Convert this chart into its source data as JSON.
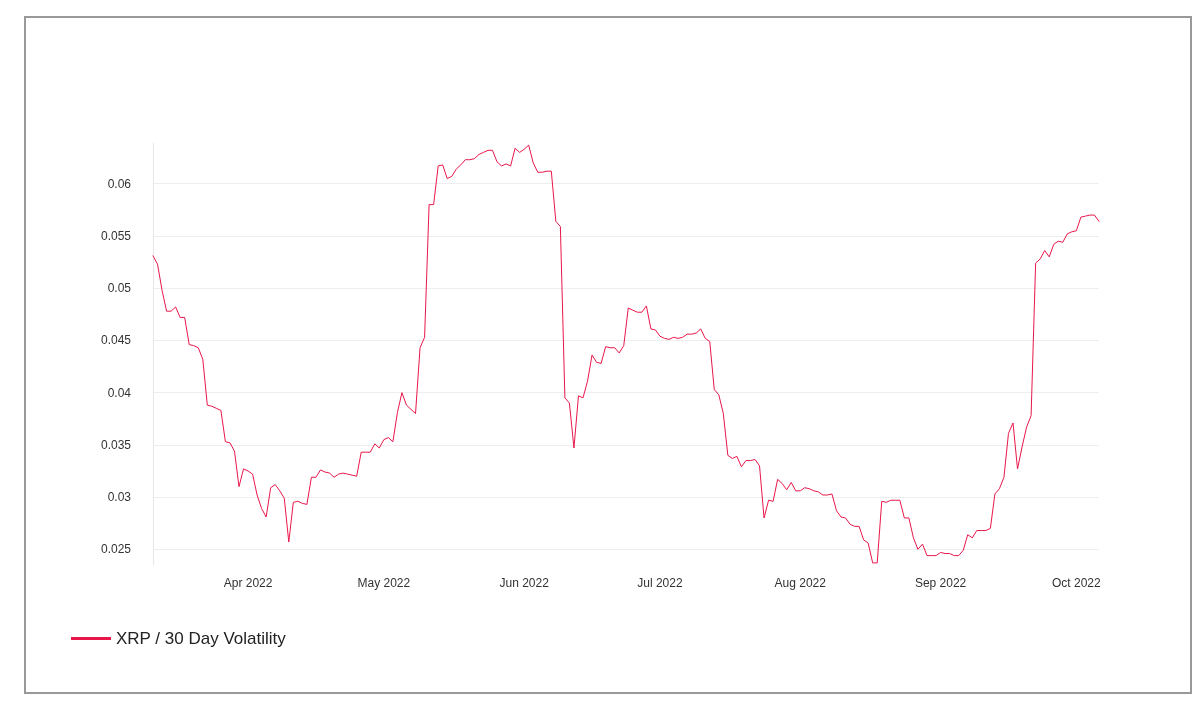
{
  "chart_data": {
    "type": "line",
    "marker": "none",
    "line_style": "solid",
    "grid": "y",
    "legend": "bottom left",
    "xlim": [
      "2022-03-11",
      "2022-10-06"
    ],
    "xticks": [
      {
        "value": "2022-04-01",
        "label": "Apr 2022"
      },
      {
        "value": "2022-05-01",
        "label": "May 2022"
      },
      {
        "value": "2022-06-01",
        "label": "Jun 2022"
      },
      {
        "value": "2022-07-01",
        "label": "Jul 2022"
      },
      {
        "value": "2022-08-01",
        "label": "Aug 2022"
      },
      {
        "value": "2022-09-01",
        "label": "Sep 2022"
      },
      {
        "value": "2022-10-01",
        "label": "Oct 2022"
      }
    ],
    "ylim": [
      0.0235,
      0.0639
    ],
    "yticks": [
      0.025,
      0.03,
      0.035,
      0.04,
      0.045,
      0.05,
      0.055,
      0.06
    ],
    "x": [
      "2022-03-11",
      "2022-03-12",
      "2022-03-13",
      "2022-03-14",
      "2022-03-15",
      "2022-03-16",
      "2022-03-17",
      "2022-03-18",
      "2022-03-19",
      "2022-03-20",
      "2022-03-21",
      "2022-03-22",
      "2022-03-23",
      "2022-03-24",
      "2022-03-25",
      "2022-03-26",
      "2022-03-27",
      "2022-03-28",
      "2022-03-29",
      "2022-03-30",
      "2022-03-31",
      "2022-04-01",
      "2022-04-02",
      "2022-04-03",
      "2022-04-04",
      "2022-04-05",
      "2022-04-06",
      "2022-04-07",
      "2022-04-08",
      "2022-04-09",
      "2022-04-10",
      "2022-04-11",
      "2022-04-12",
      "2022-04-13",
      "2022-04-14",
      "2022-04-15",
      "2022-04-16",
      "2022-04-17",
      "2022-04-18",
      "2022-04-19",
      "2022-04-20",
      "2022-04-21",
      "2022-04-22",
      "2022-04-23",
      "2022-04-24",
      "2022-04-25",
      "2022-04-26",
      "2022-04-27",
      "2022-04-28",
      "2022-04-29",
      "2022-04-30",
      "2022-05-01",
      "2022-05-02",
      "2022-05-03",
      "2022-05-04",
      "2022-05-05",
      "2022-05-06",
      "2022-05-07",
      "2022-05-08",
      "2022-05-09",
      "2022-05-10",
      "2022-05-11",
      "2022-05-12",
      "2022-05-13",
      "2022-05-14",
      "2022-05-15",
      "2022-05-16",
      "2022-05-17",
      "2022-05-18",
      "2022-05-19",
      "2022-05-20",
      "2022-05-21",
      "2022-05-22",
      "2022-05-23",
      "2022-05-24",
      "2022-05-25",
      "2022-05-26",
      "2022-05-27",
      "2022-05-28",
      "2022-05-29",
      "2022-05-30",
      "2022-05-31",
      "2022-06-01",
      "2022-06-02",
      "2022-06-03",
      "2022-06-04",
      "2022-06-05",
      "2022-06-06",
      "2022-06-07",
      "2022-06-08",
      "2022-06-09",
      "2022-06-10",
      "2022-06-11",
      "2022-06-12",
      "2022-06-13",
      "2022-06-14",
      "2022-06-15",
      "2022-06-16",
      "2022-06-17",
      "2022-06-18",
      "2022-06-19",
      "2022-06-20",
      "2022-06-21",
      "2022-06-22",
      "2022-06-23",
      "2022-06-24",
      "2022-06-25",
      "2022-06-26",
      "2022-06-27",
      "2022-06-28",
      "2022-06-29",
      "2022-06-30",
      "2022-07-01",
      "2022-07-02",
      "2022-07-03",
      "2022-07-04",
      "2022-07-05",
      "2022-07-06",
      "2022-07-07",
      "2022-07-08",
      "2022-07-09",
      "2022-07-10",
      "2022-07-11",
      "2022-07-12",
      "2022-07-13",
      "2022-07-14",
      "2022-07-15",
      "2022-07-16",
      "2022-07-17",
      "2022-07-18",
      "2022-07-19",
      "2022-07-20",
      "2022-07-21",
      "2022-07-22",
      "2022-07-23",
      "2022-07-24",
      "2022-07-25",
      "2022-07-26",
      "2022-07-27",
      "2022-07-28",
      "2022-07-29",
      "2022-07-30",
      "2022-07-31",
      "2022-08-01",
      "2022-08-02",
      "2022-08-03",
      "2022-08-04",
      "2022-08-05",
      "2022-08-06",
      "2022-08-07",
      "2022-08-08",
      "2022-08-09",
      "2022-08-10",
      "2022-08-11",
      "2022-08-12",
      "2022-08-13",
      "2022-08-14",
      "2022-08-15",
      "2022-08-16",
      "2022-08-17",
      "2022-08-18",
      "2022-08-19",
      "2022-08-20",
      "2022-08-21",
      "2022-08-22",
      "2022-08-23",
      "2022-08-24",
      "2022-08-25",
      "2022-08-26",
      "2022-08-27",
      "2022-08-28",
      "2022-08-29",
      "2022-08-30",
      "2022-08-31",
      "2022-09-01",
      "2022-09-02",
      "2022-09-03",
      "2022-09-04",
      "2022-09-05",
      "2022-09-06",
      "2022-09-07",
      "2022-09-08",
      "2022-09-09",
      "2022-09-10",
      "2022-09-11",
      "2022-09-12",
      "2022-09-13",
      "2022-09-14",
      "2022-09-15",
      "2022-09-16",
      "2022-09-17",
      "2022-09-18",
      "2022-09-19",
      "2022-09-20",
      "2022-09-21",
      "2022-09-22",
      "2022-09-23",
      "2022-09-24",
      "2022-09-25",
      "2022-09-26",
      "2022-09-27",
      "2022-09-28",
      "2022-09-29",
      "2022-09-30",
      "2022-10-01",
      "2022-10-02",
      "2022-10-03",
      "2022-10-04",
      "2022-10-05",
      "2022-10-06"
    ],
    "series": [
      {
        "name": "XRP / 30 Day Volatility",
        "color": "#e8174a",
        "values": [
          0.0531,
          0.0523,
          0.0498,
          0.0478,
          0.0478,
          0.0482,
          0.0472,
          0.0472,
          0.0446,
          0.0445,
          0.0443,
          0.0432,
          0.0388,
          0.0387,
          0.0385,
          0.0383,
          0.0353,
          0.0352,
          0.0344,
          0.031,
          0.0327,
          0.0325,
          0.0322,
          0.0302,
          0.0289,
          0.0281,
          0.0309,
          0.0312,
          0.0306,
          0.0299,
          0.0257,
          0.0295,
          0.0296,
          0.0294,
          0.0293,
          0.0319,
          0.0319,
          0.0326,
          0.0324,
          0.0323,
          0.0319,
          0.0322,
          0.0323,
          0.0322,
          0.0321,
          0.032,
          0.0343,
          0.0343,
          0.0343,
          0.0351,
          0.0347,
          0.0355,
          0.0357,
          0.0353,
          0.0381,
          0.04,
          0.0388,
          0.0384,
          0.038,
          0.0443,
          0.0453,
          0.058,
          0.058,
          0.0617,
          0.0618,
          0.0605,
          0.0607,
          0.0614,
          0.0618,
          0.0623,
          0.0623,
          0.0624,
          0.0628,
          0.063,
          0.0632,
          0.0632,
          0.0621,
          0.0617,
          0.0619,
          0.0617,
          0.0634,
          0.063,
          0.0633,
          0.0637,
          0.062,
          0.0611,
          0.0611,
          0.0612,
          0.0612,
          0.0564,
          0.0559,
          0.0395,
          0.039,
          0.0347,
          0.0397,
          0.0395,
          0.0411,
          0.0436,
          0.0429,
          0.0428,
          0.0444,
          0.0443,
          0.0443,
          0.0438,
          0.0445,
          0.0481,
          0.0479,
          0.0477,
          0.0477,
          0.0483,
          0.0461,
          0.046,
          0.0454,
          0.0452,
          0.0451,
          0.0453,
          0.0452,
          0.0453,
          0.0456,
          0.0456,
          0.0457,
          0.0461,
          0.0452,
          0.0449,
          0.0403,
          0.0398,
          0.038,
          0.034,
          0.0337,
          0.0339,
          0.0329,
          0.0335,
          0.0335,
          0.0336,
          0.033,
          0.028,
          0.0297,
          0.0296,
          0.0317,
          0.0313,
          0.0307,
          0.0314,
          0.0306,
          0.0306,
          0.0309,
          0.0308,
          0.0306,
          0.0305,
          0.0302,
          0.0302,
          0.0303,
          0.0287,
          0.0281,
          0.028,
          0.0274,
          0.0272,
          0.0272,
          0.0259,
          0.0256,
          0.0237,
          0.0237,
          0.0296,
          0.0295,
          0.0297,
          0.0297,
          0.0297,
          0.028,
          0.028,
          0.0261,
          0.025,
          0.0255,
          0.0244,
          0.0244,
          0.0244,
          0.0247,
          0.0246,
          0.0246,
          0.0244,
          0.0244,
          0.0249,
          0.0264,
          0.0261,
          0.0268,
          0.0268,
          0.0268,
          0.027,
          0.0303,
          0.0308,
          0.0319,
          0.0361,
          0.0371,
          0.0327,
          0.0348,
          0.0367,
          0.0378,
          0.0524,
          0.0528,
          0.0536,
          0.053,
          0.0542,
          0.0545,
          0.0544,
          0.0552,
          0.0554,
          0.0555,
          0.0568,
          0.0569,
          0.057,
          0.057,
          0.0564
        ]
      }
    ]
  }
}
